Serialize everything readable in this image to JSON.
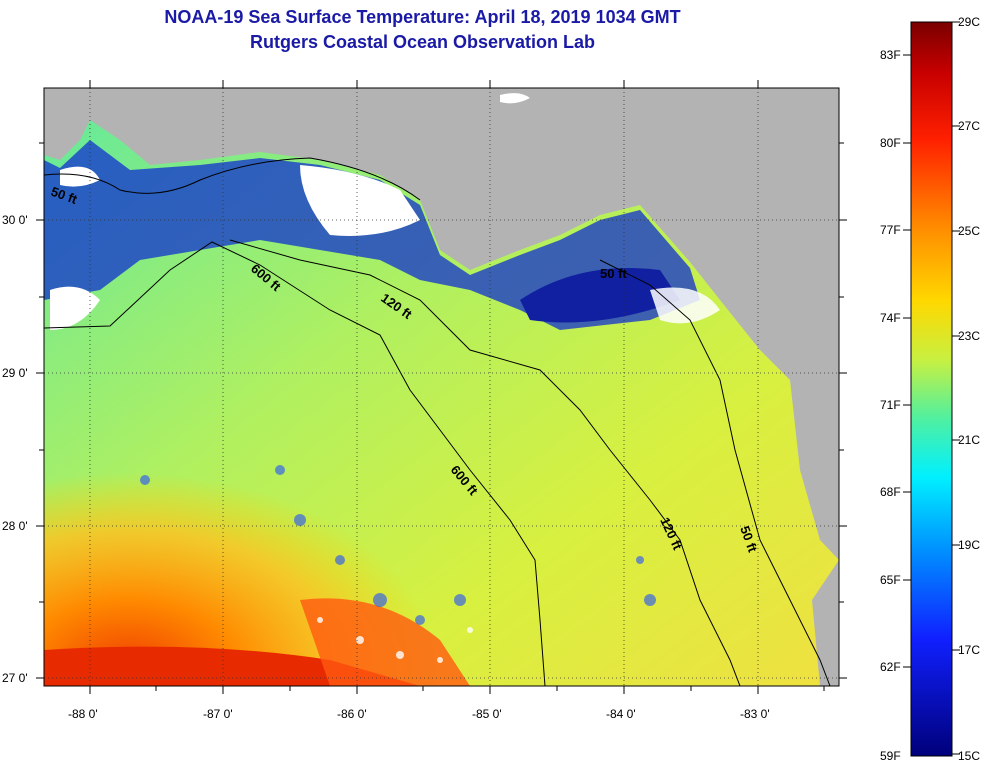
{
  "title": {
    "line1": "NOAA-19 Sea Surface Temperature:  April 18, 2019 1034 GMT",
    "line2": "Rutgers Coastal Ocean Observation Lab"
  },
  "axes": {
    "x_ticks": [
      "-88 0'",
      "-87 0'",
      "-86 0'",
      "-85 0'",
      "-84 0'",
      "-83 0'"
    ],
    "y_ticks": [
      "30 0'",
      "29 0'",
      "28 0'",
      "27 0'"
    ]
  },
  "contours": {
    "d600_a": "600 ft",
    "d600_b": "600 ft",
    "d120_a": "120 ft",
    "d120_b": "120 ft",
    "d50_a": "50 ft",
    "d50_b": "50 ft",
    "d50_c": "50 ft"
  },
  "colorbar": {
    "f_labels": [
      "83F",
      "80F",
      "77F",
      "74F",
      "71F",
      "68F",
      "65F",
      "62F",
      "59F"
    ],
    "c_labels": [
      "29C",
      "27C",
      "25C",
      "23C",
      "21C",
      "19C",
      "17C",
      "15C"
    ],
    "range_c": [
      15,
      29
    ]
  },
  "colors": {
    "land": "#b3b3b3",
    "cloud": "#ffffff",
    "cold": "#000090",
    "warm": "#e83000",
    "title": "#1a1aa6"
  }
}
